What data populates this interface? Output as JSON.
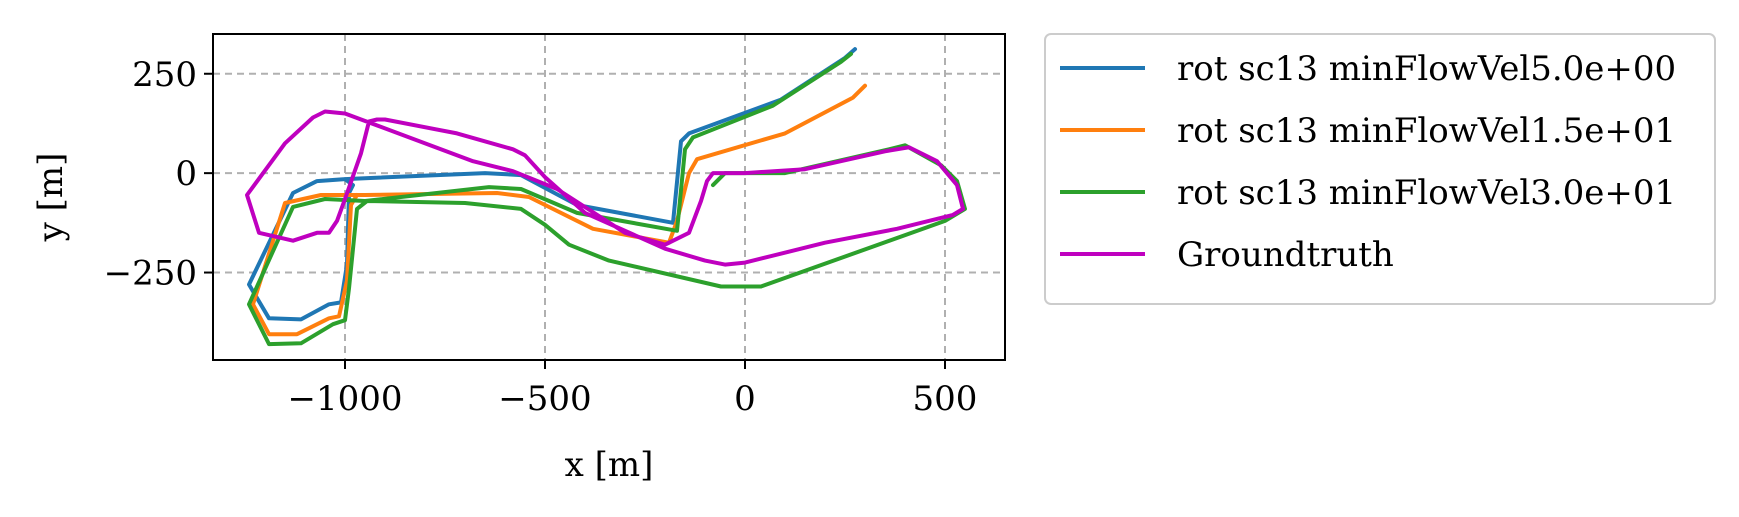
{
  "chart_data": {
    "type": "line",
    "title": "",
    "xlabel": "x [m]",
    "ylabel": "y [m]",
    "xlim": [
      -1330,
      650
    ],
    "ylim": [
      -470,
      350
    ],
    "xticks": [
      -1000,
      -500,
      0,
      500
    ],
    "yticks": [
      -250,
      0,
      250
    ],
    "xtick_labels": [
      "−1000",
      "−500",
      "0",
      "500"
    ],
    "ytick_labels": [
      "−250",
      "0",
      "250"
    ],
    "grid": true,
    "legend_position": "outside-right-top",
    "series": [
      {
        "name": "rot sc13 minFlowVel5.0e+00",
        "color": "#1f77b4",
        "points": [
          [
            275,
            312
          ],
          [
            250,
            290
          ],
          [
            90,
            185
          ],
          [
            -140,
            100
          ],
          [
            -160,
            80
          ],
          [
            -180,
            -125
          ],
          [
            -420,
            -80
          ],
          [
            -560,
            -5
          ],
          [
            -650,
            0
          ],
          [
            -1000,
            -15
          ],
          [
            -1070,
            -20
          ],
          [
            -1130,
            -50
          ],
          [
            -1240,
            -280
          ],
          [
            -1190,
            -365
          ],
          [
            -1110,
            -368
          ],
          [
            -1040,
            -330
          ],
          [
            -1010,
            -325
          ],
          [
            -995,
            -230
          ],
          [
            -990,
            -50
          ],
          [
            -980,
            -30
          ],
          [
            -1000,
            -15
          ]
        ]
      },
      {
        "name": "rot sc13 minFlowVel1.5e+01",
        "color": "#ff7f0e",
        "points": [
          [
            300,
            220
          ],
          [
            270,
            190
          ],
          [
            100,
            100
          ],
          [
            -120,
            35
          ],
          [
            -140,
            0
          ],
          [
            -170,
            -120
          ],
          [
            -190,
            -175
          ],
          [
            -380,
            -140
          ],
          [
            -540,
            -60
          ],
          [
            -620,
            -50
          ],
          [
            -950,
            -55
          ],
          [
            -1060,
            -55
          ],
          [
            -1150,
            -75
          ],
          [
            -1230,
            -330
          ],
          [
            -1190,
            -405
          ],
          [
            -1120,
            -405
          ],
          [
            -1040,
            -365
          ],
          [
            -1015,
            -360
          ],
          [
            -995,
            -270
          ],
          [
            -985,
            -80
          ],
          [
            -970,
            -55
          ]
        ]
      },
      {
        "name": "rot sc13 minFlowVel3.0e+01",
        "color": "#2ca02c",
        "points": [
          [
            265,
            300
          ],
          [
            240,
            280
          ],
          [
            70,
            170
          ],
          [
            -130,
            90
          ],
          [
            -150,
            60
          ],
          [
            -170,
            -145
          ],
          [
            -420,
            -100
          ],
          [
            -560,
            -40
          ],
          [
            -640,
            -35
          ],
          [
            -950,
            -70
          ],
          [
            -1050,
            -65
          ],
          [
            -1130,
            -85
          ],
          [
            -1240,
            -330
          ],
          [
            -1190,
            -430
          ],
          [
            -1110,
            -428
          ],
          [
            -1030,
            -380
          ],
          [
            -1000,
            -370
          ],
          [
            -990,
            -290
          ],
          [
            -970,
            -90
          ],
          [
            -945,
            -70
          ],
          [
            -700,
            -75
          ],
          [
            -560,
            -90
          ],
          [
            -500,
            -130
          ],
          [
            -440,
            -180
          ],
          [
            -340,
            -220
          ],
          [
            -60,
            -285
          ],
          [
            40,
            -285
          ],
          [
            500,
            -120
          ],
          [
            550,
            -90
          ],
          [
            530,
            -20
          ],
          [
            490,
            20
          ],
          [
            400,
            70
          ],
          [
            360,
            60
          ],
          [
            100,
            0
          ],
          [
            -50,
            0
          ],
          [
            -80,
            -30
          ]
        ]
      },
      {
        "name": "Groundtruth",
        "color": "#bf00bf",
        "points": [
          [
            -940,
            130
          ],
          [
            -920,
            135
          ],
          [
            -900,
            135
          ],
          [
            -720,
            100
          ],
          [
            -580,
            60
          ],
          [
            -550,
            45
          ],
          [
            -500,
            -10
          ],
          [
            -400,
            -100
          ],
          [
            -200,
            -190
          ],
          [
            -100,
            -220
          ],
          [
            -50,
            -230
          ],
          [
            0,
            -225
          ],
          [
            200,
            -175
          ],
          [
            380,
            -140
          ],
          [
            520,
            -105
          ],
          [
            545,
            -90
          ],
          [
            530,
            -30
          ],
          [
            480,
            30
          ],
          [
            410,
            65
          ],
          [
            350,
            55
          ],
          [
            150,
            10
          ],
          [
            0,
            0
          ],
          [
            -80,
            0
          ],
          [
            -95,
            -20
          ],
          [
            -110,
            -70
          ],
          [
            -140,
            -150
          ],
          [
            -200,
            -180
          ],
          [
            -300,
            -150
          ],
          [
            -470,
            -40
          ],
          [
            -580,
            5
          ],
          [
            -680,
            30
          ],
          [
            -1000,
            150
          ],
          [
            -1050,
            155
          ],
          [
            -1080,
            140
          ],
          [
            -1150,
            75
          ],
          [
            -1245,
            -55
          ],
          [
            -1215,
            -150
          ],
          [
            -1130,
            -170
          ],
          [
            -1070,
            -150
          ],
          [
            -1040,
            -150
          ],
          [
            -1020,
            -120
          ],
          [
            -1000,
            -65
          ],
          [
            -960,
            50
          ],
          [
            -940,
            130
          ]
        ]
      }
    ]
  }
}
